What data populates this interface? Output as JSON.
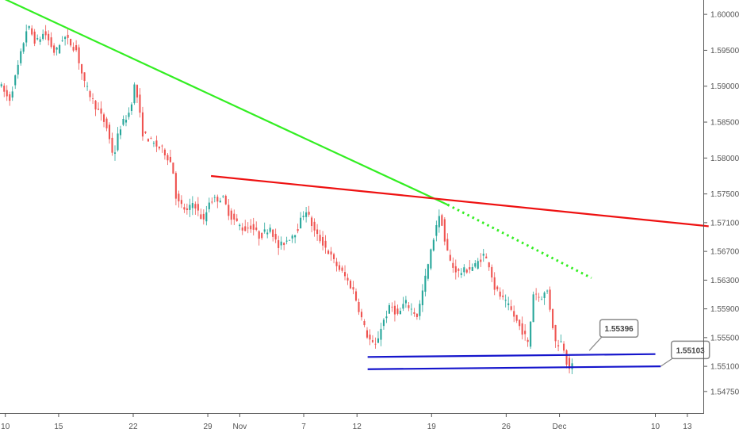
{
  "chart_data": {
    "type": "candlestick",
    "grid": false,
    "colors": {
      "up": "#26a69a",
      "down": "#ef5350",
      "axis": "#555555"
    },
    "x_ticks": [
      {
        "label": "10",
        "day": 10
      },
      {
        "label": "15",
        "day": 15
      },
      {
        "label": "22",
        "day": 22
      },
      {
        "label": "29",
        "day": 29
      },
      {
        "label": "Nov",
        "day": 32
      },
      {
        "label": "7",
        "day": 38
      },
      {
        "label": "12",
        "day": 43
      },
      {
        "label": "19",
        "day": 50
      },
      {
        "label": "26",
        "day": 57
      },
      {
        "label": "Dec",
        "day": 62
      },
      {
        "label": "10",
        "day": 71
      },
      {
        "label": "13",
        "day": 74
      }
    ],
    "y_ticks": [
      "1.60000",
      "1.59500",
      "1.59000",
      "1.58500",
      "1.58000",
      "1.57500",
      "1.57100",
      "1.56700",
      "1.56300",
      "1.55900",
      "1.55500",
      "1.55100",
      "1.54750"
    ],
    "ylim": [
      1.5445,
      1.602
    ],
    "xlim": [
      9.5,
      75.5
    ],
    "price_points": [
      [
        9.5,
        1.5905
      ],
      [
        10.5,
        1.588
      ],
      [
        11.2,
        1.592
      ],
      [
        12.2,
        1.5985
      ],
      [
        13.0,
        1.596
      ],
      [
        13.8,
        1.5975
      ],
      [
        14.8,
        1.5945
      ],
      [
        15.6,
        1.597
      ],
      [
        16.8,
        1.595
      ],
      [
        17.5,
        1.5905
      ],
      [
        18.5,
        1.5875
      ],
      [
        19.6,
        1.5845
      ],
      [
        20.3,
        1.58
      ],
      [
        20.8,
        1.584
      ],
      [
        21.8,
        1.5865
      ],
      [
        22.3,
        1.5905
      ],
      [
        23.0,
        1.5835
      ],
      [
        24.0,
        1.582
      ],
      [
        25.0,
        1.581
      ],
      [
        25.8,
        1.579
      ],
      [
        26.2,
        1.574
      ],
      [
        27.2,
        1.5725
      ],
      [
        27.8,
        1.574
      ],
      [
        28.2,
        1.5725
      ],
      [
        28.8,
        1.571
      ],
      [
        29.2,
        1.574
      ],
      [
        30.5,
        1.5745
      ],
      [
        31.2,
        1.572
      ],
      [
        32.5,
        1.57
      ],
      [
        33.2,
        1.5705
      ],
      [
        34.0,
        1.569
      ],
      [
        35.0,
        1.5705
      ],
      [
        35.7,
        1.5675
      ],
      [
        36.5,
        1.5685
      ],
      [
        37.5,
        1.57
      ],
      [
        38.3,
        1.573
      ],
      [
        39.2,
        1.5695
      ],
      [
        40.0,
        1.568
      ],
      [
        41.0,
        1.5655
      ],
      [
        42.0,
        1.5635
      ],
      [
        42.8,
        1.5615
      ],
      [
        43.4,
        1.5585
      ],
      [
        44.0,
        1.5555
      ],
      [
        44.8,
        1.5535
      ],
      [
        45.5,
        1.557
      ],
      [
        46.3,
        1.5595
      ],
      [
        47.0,
        1.558
      ],
      [
        47.6,
        1.56
      ],
      [
        48.2,
        1.559
      ],
      [
        48.8,
        1.558
      ],
      [
        49.5,
        1.563
      ],
      [
        50.0,
        1.5665
      ],
      [
        50.6,
        1.571
      ],
      [
        51.0,
        1.572
      ],
      [
        51.4,
        1.568
      ],
      [
        52.0,
        1.565
      ],
      [
        52.7,
        1.564
      ],
      [
        53.5,
        1.5645
      ],
      [
        54.2,
        1.565
      ],
      [
        55.0,
        1.5665
      ],
      [
        55.6,
        1.565
      ],
      [
        56.0,
        1.562
      ],
      [
        56.7,
        1.5605
      ],
      [
        57.5,
        1.559
      ],
      [
        58.2,
        1.557
      ],
      [
        58.8,
        1.5555
      ],
      [
        59.2,
        1.554
      ],
      [
        59.7,
        1.5615
      ],
      [
        60.3,
        1.5605
      ],
      [
        61.0,
        1.5615
      ],
      [
        61.4,
        1.5575
      ],
      [
        61.8,
        1.554
      ],
      [
        62.4,
        1.5545
      ],
      [
        62.9,
        1.551
      ],
      [
        63.1,
        1.551
      ]
    ],
    "trend_lines": [
      {
        "name": "green-trendline",
        "color": "#33ee22",
        "style": "solid",
        "points": [
          [
            9.4,
            1.6025
          ],
          [
            51.5,
            1.5735
          ]
        ]
      },
      {
        "name": "green-trendline-projection",
        "color": "#33ee22",
        "style": "dotted",
        "points": [
          [
            51.5,
            1.5735
          ],
          [
            65.0,
            1.5633
          ]
        ]
      },
      {
        "name": "red-trendline",
        "color": "#ee1111",
        "style": "solid",
        "points": [
          [
            29.3,
            1.5775
          ],
          [
            76.0,
            1.5705
          ]
        ]
      },
      {
        "name": "blue-line-upper",
        "color": "#1515cc",
        "style": "solid",
        "points": [
          [
            44.0,
            1.5523
          ],
          [
            71.0,
            1.5527
          ]
        ]
      },
      {
        "name": "blue-line-lower",
        "color": "#1515cc",
        "style": "solid",
        "points": [
          [
            44.0,
            1.5506
          ],
          [
            71.5,
            1.551
          ]
        ]
      }
    ],
    "annotations": [
      {
        "name": "callout-155396",
        "text": "1.55396",
        "anchor": [
          64.8,
          1.5532
        ],
        "box": [
          65.8,
          1.5575
        ]
      },
      {
        "name": "callout-155103",
        "text": "1.55103",
        "anchor": [
          71.5,
          1.551
        ],
        "box": [
          72.5,
          1.5545
        ]
      }
    ]
  }
}
